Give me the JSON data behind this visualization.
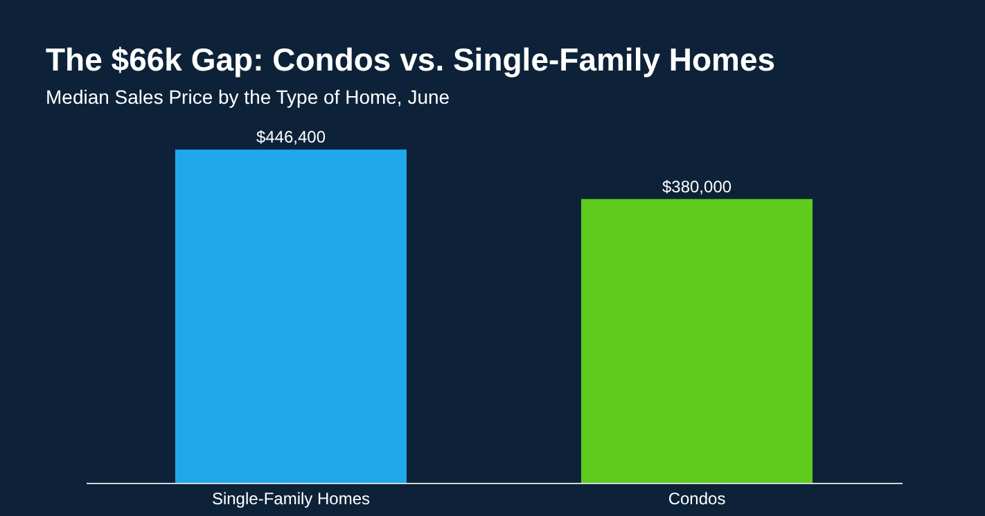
{
  "chart_data": {
    "type": "bar",
    "title": "The $66k Gap: Condos vs. Single-Family Homes",
    "subtitle": "Median Sales Price by the Type of Home, June",
    "categories": [
      "Single-Family Homes",
      "Condos"
    ],
    "values": [
      446400,
      380000
    ],
    "colors": [
      "#21a8ec",
      "#5fcb1c"
    ],
    "value_labels": [
      "$446,400",
      "$380,000"
    ]
  }
}
